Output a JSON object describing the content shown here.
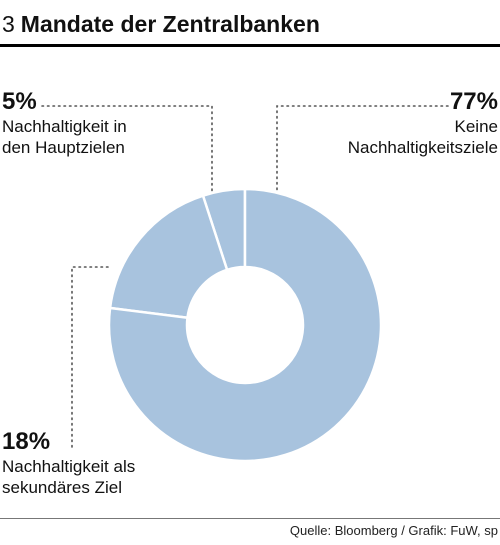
{
  "header": {
    "number": "3",
    "title": "Mandate der Zentralbanken"
  },
  "source": "Quelle: Bloomberg / Grafik: FuW, sp",
  "chart_data": {
    "type": "pie",
    "style": "donut",
    "colors": {
      "slice": "#a8c3de",
      "border": "#ffffff",
      "leader": "#555555"
    },
    "slices": [
      {
        "value": 5,
        "label": "5%",
        "desc": [
          "Nachhaltigkeit in",
          "den Hauptzielen"
        ]
      },
      {
        "value": 18,
        "label": "18%",
        "desc": [
          "Nachhaltigkeit als",
          "sekundäres Ziel"
        ]
      },
      {
        "value": 77,
        "label": "77%",
        "desc": [
          "Keine",
          "Nachhaltigkeitsziele"
        ]
      }
    ]
  }
}
